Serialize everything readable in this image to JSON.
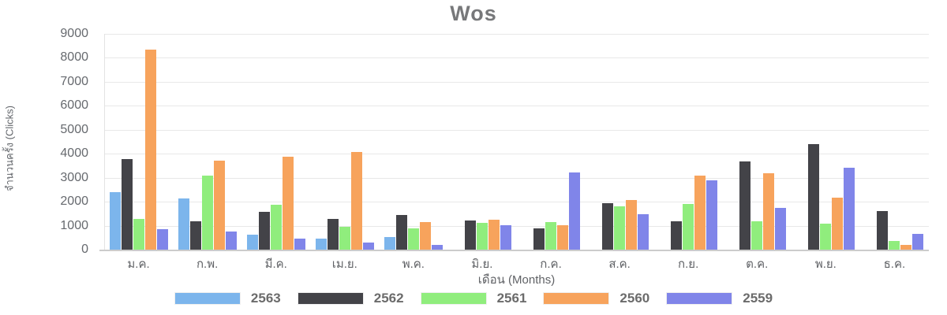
{
  "title": "Wos",
  "chart_data": {
    "type": "bar",
    "title": "Wos",
    "xlabel": "เดือน (Months)",
    "ylabel": "จำนวนครั้ง (Clicks)",
    "ylim": [
      0,
      9000
    ],
    "ytick_step": 1000,
    "yticks": [
      0,
      1000,
      2000,
      3000,
      4000,
      5000,
      6000,
      7000,
      8000,
      9000
    ],
    "grid": true,
    "legend_position": "bottom",
    "categories": [
      "ม.ค.",
      "ก.พ.",
      "มี.ค.",
      "เม.ย.",
      "พ.ค.",
      "มิ.ย.",
      "ก.ค.",
      "ส.ค.",
      "ก.ย.",
      "ต.ค.",
      "พ.ย.",
      "ธ.ค."
    ],
    "series": [
      {
        "name": "2563",
        "color": "#7cb5ec",
        "values": [
          2400,
          2120,
          640,
          470,
          540,
          0,
          0,
          0,
          0,
          0,
          0,
          0
        ]
      },
      {
        "name": "2562",
        "color": "#434348",
        "values": [
          3780,
          1180,
          1580,
          1280,
          1450,
          1200,
          890,
          1950,
          1180,
          3680,
          4400,
          1600
        ]
      },
      {
        "name": "2561",
        "color": "#90ed7d",
        "values": [
          1280,
          3100,
          1870,
          950,
          890,
          1120,
          1150,
          1800,
          1910,
          1180,
          1080,
          360
        ]
      },
      {
        "name": "2560",
        "color": "#f7a35c",
        "values": [
          8350,
          3720,
          3880,
          4070,
          1150,
          1250,
          1020,
          2070,
          3090,
          3190,
          2170,
          200
        ]
      },
      {
        "name": "2559",
        "color": "#8085e9",
        "values": [
          870,
          760,
          450,
          300,
          210,
          1020,
          3230,
          1480,
          2890,
          1740,
          3400,
          660
        ]
      }
    ]
  }
}
